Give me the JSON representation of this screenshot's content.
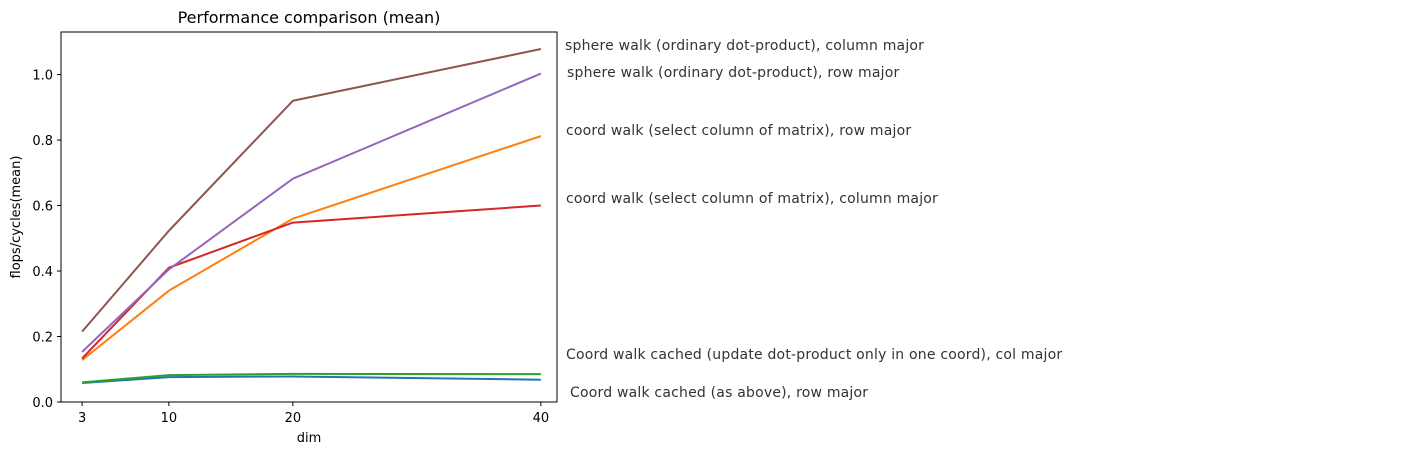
{
  "chart_data": {
    "type": "line",
    "title": "Performance comparison (mean)",
    "xlabel": "dim",
    "ylabel": "flops/cycles(mean)",
    "x": [
      3,
      10,
      20,
      40
    ],
    "xticks": [
      3,
      10,
      20,
      40
    ],
    "yticks": [
      0.0,
      0.2,
      0.4,
      0.6,
      0.8,
      1.0
    ],
    "xlim": [
      1.3,
      41.3
    ],
    "ylim": [
      0.0,
      1.13
    ],
    "grid": false,
    "legend": "none",
    "series": [
      {
        "name": "Coord walk cached (as above), row major",
        "color": "#1f77b4",
        "values": [
          0.058,
          0.076,
          0.078,
          0.068
        ]
      },
      {
        "name": "coord walk (select column of matrix), row major",
        "color": "#ff7f0e",
        "values": [
          0.128,
          0.34,
          0.56,
          0.812
        ]
      },
      {
        "name": "Coord walk cached (update dot-product only in one coord), col major",
        "color": "#2ca02c",
        "values": [
          0.06,
          0.082,
          0.086,
          0.085
        ]
      },
      {
        "name": "coord walk (select column of matrix), column major",
        "color": "#d62728",
        "values": [
          0.133,
          0.41,
          0.548,
          0.6
        ]
      },
      {
        "name": "sphere walk (ordinary dot-product), row major",
        "color": "#9467bd",
        "values": [
          0.153,
          0.405,
          0.682,
          1.003
        ]
      },
      {
        "name": "sphere walk (ordinary dot-product), column major",
        "color": "#8c564b",
        "values": [
          0.215,
          0.523,
          0.92,
          1.078
        ]
      }
    ],
    "annotations": [
      "sphere walk (ordinary dot-product), column major",
      "sphere walk (ordinary dot-product), row major",
      "coord walk (select column of matrix), row major",
      "coord walk (select column of matrix), column major",
      "Coord walk cached (update dot-product only in one coord), col major",
      "Coord walk cached (as above), row major"
    ]
  }
}
